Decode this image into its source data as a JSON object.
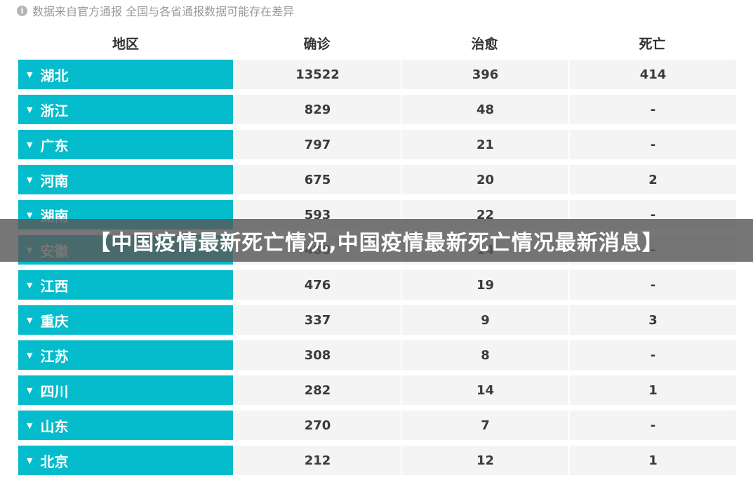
{
  "notice": {
    "icon": "info-icon",
    "text": "数据来自官方通报 全国与各省通报数据可能存在差异"
  },
  "table": {
    "headers": [
      "地区",
      "确诊",
      "治愈",
      "死亡"
    ],
    "rows": [
      {
        "region": "湖北",
        "confirmed": "13522",
        "cured": "396",
        "dead": "414"
      },
      {
        "region": "浙江",
        "confirmed": "829",
        "cured": "48",
        "dead": "-"
      },
      {
        "region": "广东",
        "confirmed": "797",
        "cured": "21",
        "dead": "-"
      },
      {
        "region": "河南",
        "confirmed": "675",
        "cured": "20",
        "dead": "2"
      },
      {
        "region": "湖南",
        "confirmed": "593",
        "cured": "22",
        "dead": "-"
      },
      {
        "region": "安徽",
        "confirmed": "480",
        "cured": "14",
        "dead": "-"
      },
      {
        "region": "江西",
        "confirmed": "476",
        "cured": "19",
        "dead": "-"
      },
      {
        "region": "重庆",
        "confirmed": "337",
        "cured": "9",
        "dead": "3"
      },
      {
        "region": "江苏",
        "confirmed": "308",
        "cured": "8",
        "dead": "-"
      },
      {
        "region": "四川",
        "confirmed": "282",
        "cured": "14",
        "dead": "1"
      },
      {
        "region": "山东",
        "confirmed": "270",
        "cured": "7",
        "dead": "-"
      },
      {
        "region": "北京",
        "confirmed": "212",
        "cured": "12",
        "dead": "1"
      }
    ]
  },
  "banner": {
    "text": "【中国疫情最新死亡情况,中国疫情最新死亡情况最新消息】"
  },
  "colors": {
    "region_bg": "#04bccb",
    "cell_bg": "#f4f4f4",
    "banner_bg": "#585858"
  }
}
